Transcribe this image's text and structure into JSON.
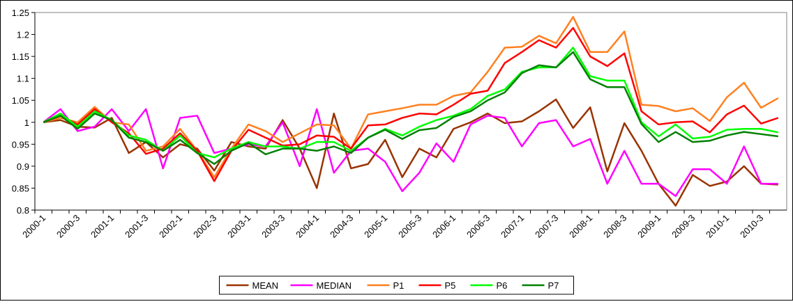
{
  "chart_data": {
    "type": "line",
    "categories": [
      "2000-1",
      null,
      "2000-3",
      null,
      "2001-1",
      null,
      "2001-3",
      null,
      "2002-1",
      null,
      "2002-3",
      null,
      "2003-1",
      null,
      "2003-3",
      null,
      "2004-1",
      null,
      "2004-3",
      null,
      "2005-1",
      null,
      "2005-3",
      null,
      "2006-1",
      null,
      "2006-3",
      null,
      "2007-1",
      null,
      "2007-3",
      null,
      "2008-1",
      null,
      "2008-3",
      null,
      "2009-1",
      null,
      "2009-3",
      null,
      "2010-1",
      null,
      "2010-3",
      null
    ],
    "series": [
      {
        "name": "MEAN",
        "color": "#993300",
        "values": [
          1.0,
          1.005,
          0.99,
          0.988,
          1.01,
          0.93,
          0.955,
          0.92,
          0.95,
          0.94,
          0.89,
          0.955,
          0.945,
          0.94,
          1.005,
          0.94,
          0.85,
          1.02,
          0.895,
          0.905,
          0.96,
          0.875,
          0.94,
          0.92,
          0.985,
          1.0,
          1.02,
          0.998,
          1.002,
          1.025,
          1.052,
          0.987,
          1.034,
          0.888,
          0.998,
          0.935,
          0.86,
          0.81,
          0.88,
          0.855,
          0.865,
          0.9,
          0.86,
          0.858
        ]
      },
      {
        "name": "MEDIAN",
        "color": "#ff00ff",
        "values": [
          1.0,
          1.03,
          0.98,
          0.99,
          1.03,
          0.98,
          1.03,
          0.895,
          1.01,
          1.015,
          0.93,
          0.94,
          0.95,
          0.945,
          1.0,
          0.9,
          1.03,
          0.885,
          0.935,
          0.94,
          0.91,
          0.843,
          0.885,
          0.952,
          0.91,
          0.995,
          1.015,
          1.01,
          0.945,
          0.998,
          1.005,
          0.945,
          0.962,
          0.86,
          0.935,
          0.86,
          0.86,
          0.832,
          0.893,
          0.893,
          0.86,
          0.945,
          0.86,
          0.86
        ]
      },
      {
        "name": "P1",
        "color": "#ff8020",
        "values": [
          1.0,
          1.01,
          1.0,
          1.035,
          1.0,
          0.995,
          0.935,
          0.945,
          0.985,
          0.935,
          0.875,
          0.94,
          0.995,
          0.98,
          0.955,
          0.975,
          0.995,
          0.993,
          0.94,
          1.018,
          1.025,
          1.032,
          1.04,
          1.04,
          1.06,
          1.068,
          1.115,
          1.17,
          1.172,
          1.197,
          1.18,
          1.24,
          1.16,
          1.16,
          1.207,
          1.04,
          1.037,
          1.025,
          1.032,
          1.003,
          1.057,
          1.09,
          1.033,
          1.055
        ]
      },
      {
        "name": "P5",
        "color": "#ff0000",
        "values": [
          1.0,
          1.015,
          0.995,
          1.03,
          1.0,
          0.975,
          0.928,
          0.94,
          0.975,
          0.935,
          0.866,
          0.935,
          0.983,
          0.965,
          0.947,
          0.95,
          0.97,
          0.967,
          0.94,
          0.993,
          0.995,
          1.01,
          1.02,
          1.018,
          1.04,
          1.065,
          1.072,
          1.135,
          1.16,
          1.187,
          1.17,
          1.215,
          1.15,
          1.128,
          1.157,
          1.025,
          0.995,
          1.0,
          1.002,
          0.977,
          1.018,
          1.038,
          0.997,
          1.01
        ]
      },
      {
        "name": "P6",
        "color": "#00ff00",
        "values": [
          1.0,
          1.02,
          0.99,
          1.025,
          1.005,
          0.97,
          0.96,
          0.935,
          0.97,
          0.93,
          0.92,
          0.94,
          0.955,
          0.945,
          0.945,
          0.94,
          0.955,
          0.955,
          0.935,
          0.965,
          0.985,
          0.97,
          0.99,
          1.005,
          1.015,
          1.03,
          1.06,
          1.075,
          1.115,
          1.125,
          1.125,
          1.17,
          1.105,
          1.095,
          1.095,
          1.0,
          0.968,
          0.995,
          0.963,
          0.967,
          0.983,
          0.985,
          0.985,
          0.977
        ]
      },
      {
        "name": "P7",
        "color": "#008000",
        "values": [
          1.0,
          1.015,
          0.985,
          1.02,
          1.005,
          0.965,
          0.955,
          0.935,
          0.96,
          0.93,
          0.905,
          0.935,
          0.953,
          0.927,
          0.94,
          0.94,
          0.935,
          0.945,
          0.93,
          0.965,
          0.983,
          0.962,
          0.982,
          0.987,
          1.012,
          1.025,
          1.05,
          1.068,
          1.112,
          1.13,
          1.125,
          1.16,
          1.098,
          1.08,
          1.08,
          0.996,
          0.955,
          0.978,
          0.955,
          0.958,
          0.97,
          0.978,
          0.973,
          0.968
        ]
      }
    ],
    "ylim": [
      0.8,
      1.25
    ],
    "yticks": [
      0.8,
      0.85,
      0.9,
      0.95,
      1,
      1.05,
      1.1,
      1.15,
      1.2,
      1.25
    ],
    "grid": false,
    "legend": "bottom"
  }
}
